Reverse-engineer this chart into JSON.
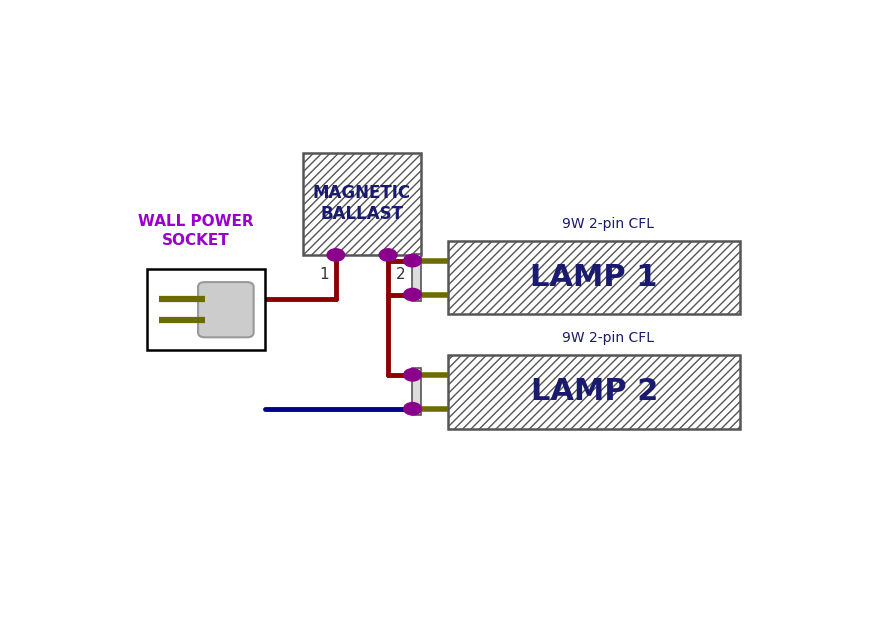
{
  "bg_color": "#ffffff",
  "dark_red": "#8B0000",
  "dark_blue": "#00008B",
  "dark_olive": "#6B6B00",
  "purple_dot": "#8B008B",
  "purple_text": "#9900CC",
  "lamp_text_color": "#1a1a6e",
  "ballast_label": "MAGNETIC\nBALLAST",
  "lamp1_label": "LAMP 1",
  "lamp2_label": "LAMP 2",
  "cfl_label": "9W 2-pin CFL",
  "socket_label": "WALL POWER\nSOCKET",
  "pin1_label": "1",
  "pin2_label": "2",
  "line_width": 3.5
}
